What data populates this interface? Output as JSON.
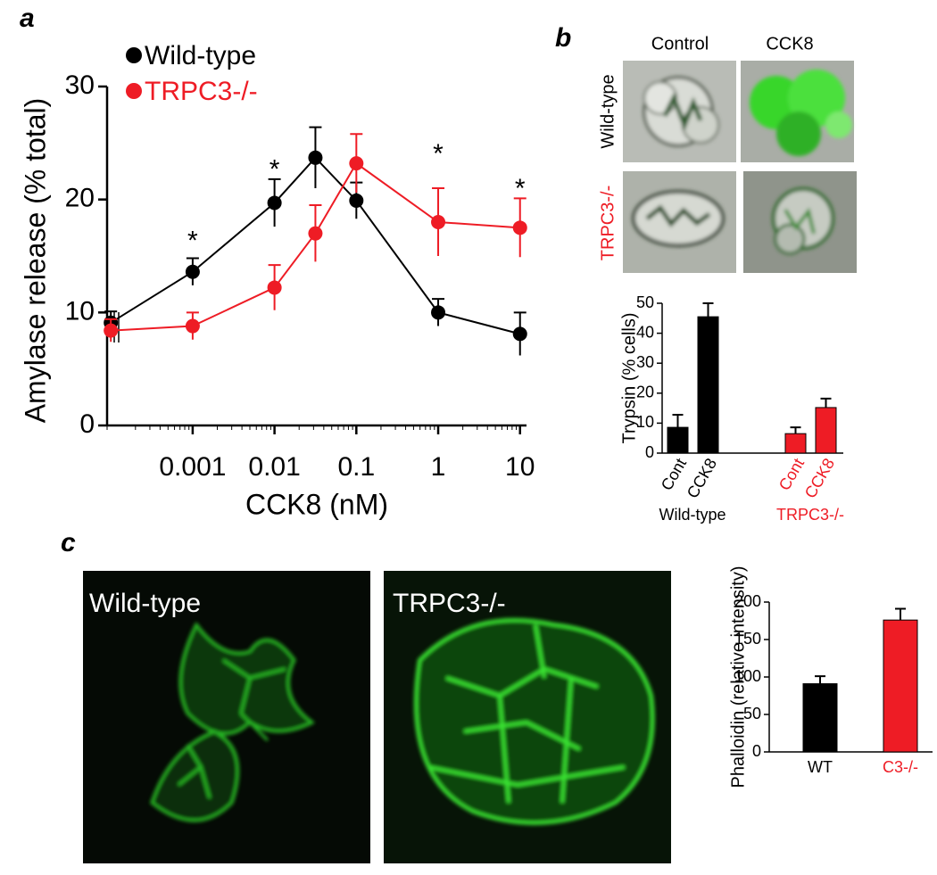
{
  "panel_labels": [
    "a",
    "b",
    "c"
  ],
  "images": {
    "b_columns": [
      "Control",
      "CCK8"
    ],
    "b_rows": [
      "Wild-type",
      "TRPC3-/-"
    ],
    "b_row_colors": [
      "#000000",
      "#ee1c25"
    ],
    "c_labels": [
      "Wild-type",
      "TRPC3-/-"
    ]
  },
  "chart_data": [
    {
      "type": "line",
      "xscale": "log",
      "xlabel": "CCK8 (nM)",
      "ylabel": "Amylase release (% total)",
      "xlim": [
        9e-05,
        12
      ],
      "ylim": [
        0,
        30
      ],
      "xticks": [
        0.001,
        0.01,
        0.1,
        1,
        10
      ],
      "yticks": [
        0,
        10,
        20,
        30
      ],
      "legend": "upper left",
      "x": [
        0.0001,
        0.001,
        0.01,
        0.0316,
        0.1,
        1,
        10
      ],
      "series": [
        {
          "name": "Wild-type",
          "color": "#000000",
          "values": [
            9.1,
            13.6,
            19.7,
            23.7,
            19.9,
            10.0,
            8.1
          ],
          "errors": [
            1.0,
            1.2,
            2.1,
            2.7,
            1.6,
            1.2,
            1.9
          ]
        },
        {
          "name": "TRPC3-/-",
          "color": "#ee1c25",
          "values": [
            8.4,
            8.8,
            12.2,
            17.0,
            23.2,
            18.0,
            17.5
          ],
          "errors": [
            1.0,
            1.2,
            2.0,
            2.5,
            2.6,
            3.0,
            2.6
          ]
        }
      ],
      "annotations": [
        {
          "text": "*",
          "x": 0.001,
          "y": 16.7
        },
        {
          "text": "*",
          "x": 0.01,
          "y": 23
        },
        {
          "text": "*",
          "x": 1,
          "y": 24.4
        },
        {
          "text": "*",
          "x": 10,
          "y": 21.3
        }
      ]
    },
    {
      "type": "grouped-bar",
      "ylabel": "Trypsin (% cells)",
      "ylim": [
        0,
        50
      ],
      "yticks": [
        0,
        10,
        20,
        30,
        40,
        50
      ],
      "groups": [
        {
          "name": "Wild-type",
          "color": "#000000",
          "categories": [
            "Cont",
            "CCK8"
          ],
          "values": [
            8.6,
            45.5
          ],
          "errors": [
            4.2,
            4.5
          ]
        },
        {
          "name": "TRPC3-/-",
          "color": "#ee1c25",
          "categories": [
            "Cont",
            "CCK8"
          ],
          "values": [
            6.5,
            15.2
          ],
          "errors": [
            2.1,
            3.0
          ]
        }
      ]
    },
    {
      "type": "bar",
      "ylabel": "Phalloidin (relative intensity)",
      "ylim": [
        0,
        200
      ],
      "yticks": [
        0,
        50,
        100,
        150,
        200
      ],
      "categories": [
        "WT",
        "C3-/-"
      ],
      "values": [
        91,
        176
      ],
      "errors": [
        10,
        15
      ],
      "colors": [
        "#000000",
        "#ee1c25"
      ]
    }
  ]
}
